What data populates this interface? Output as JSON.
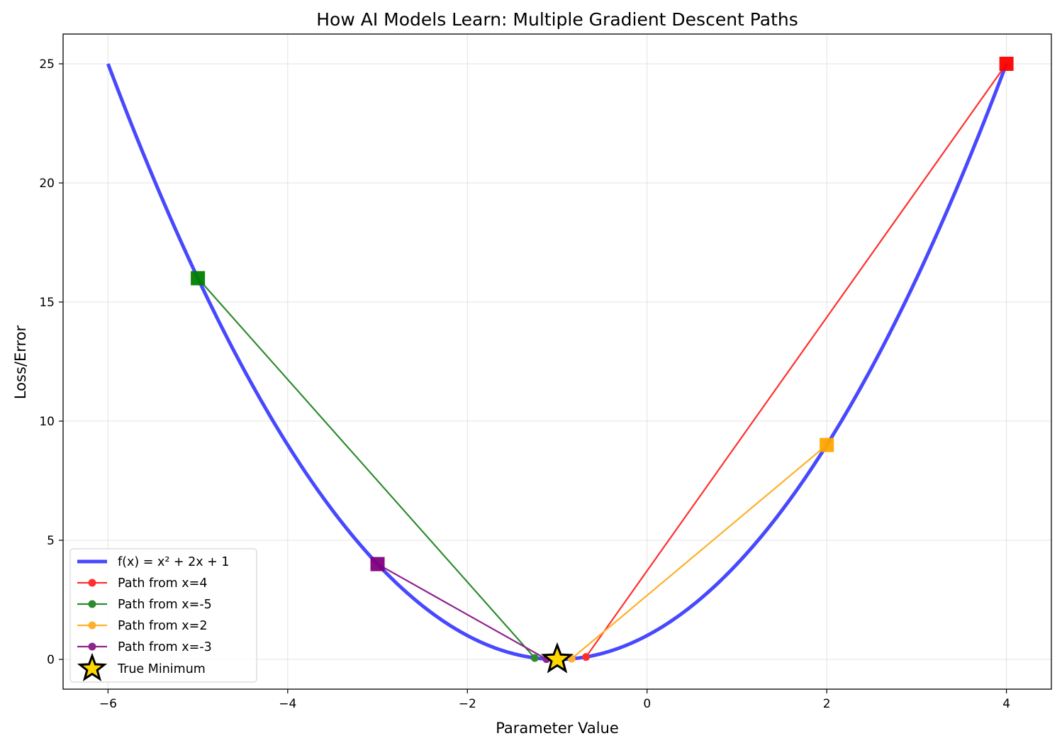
{
  "chart_data": {
    "type": "line",
    "title": "How AI Models Learn: Multiple Gradient Descent Paths",
    "xlabel": "Parameter Value",
    "ylabel": "Loss/Error",
    "xlim": [
      -6.5,
      4.5
    ],
    "ylim": [
      -1.25,
      26.25
    ],
    "x_ticks": [
      -6,
      -4,
      -2,
      0,
      2,
      4
    ],
    "x_tick_labels": [
      "−6",
      "−4",
      "−2",
      "0",
      "2",
      "4"
    ],
    "y_ticks": [
      0,
      5,
      10,
      15,
      20,
      25
    ],
    "y_tick_labels": [
      "0",
      "5",
      "10",
      "15",
      "20",
      "25"
    ],
    "grid": true,
    "legend_position": "lower-left",
    "curve": {
      "name": "f(x) = x² + 2x + 1",
      "function": "x^2 + 2x + 1",
      "x_range": [
        -6,
        4
      ],
      "color": "#4848ff"
    },
    "series": [
      {
        "name": "Path from x=4",
        "color": "#ff2f2f",
        "x": [
          4,
          -0.68
        ],
        "y": [
          25,
          0.1
        ]
      },
      {
        "name": "Path from x=-5",
        "color": "#2e8b2e",
        "x": [
          -5,
          -1.25
        ],
        "y": [
          16,
          0.06
        ]
      },
      {
        "name": "Path from x=2",
        "color": "#ffb02a",
        "x": [
          2,
          -0.84
        ],
        "y": [
          9,
          0.03
        ]
      },
      {
        "name": "Path from x=-3",
        "color": "#8e248e",
        "x": [
          -3,
          -1.12
        ],
        "y": [
          4,
          0.01
        ]
      }
    ],
    "start_markers": [
      {
        "x": 4,
        "y": 25,
        "color": "#ff0000"
      },
      {
        "x": -5,
        "y": 16,
        "color": "#008000"
      },
      {
        "x": 2,
        "y": 9,
        "color": "#ffa500"
      },
      {
        "x": -3,
        "y": 4,
        "color": "#800080"
      }
    ],
    "minimum": {
      "name": "True Minimum",
      "x": -1,
      "y": 0,
      "color": "#ffd700"
    }
  }
}
